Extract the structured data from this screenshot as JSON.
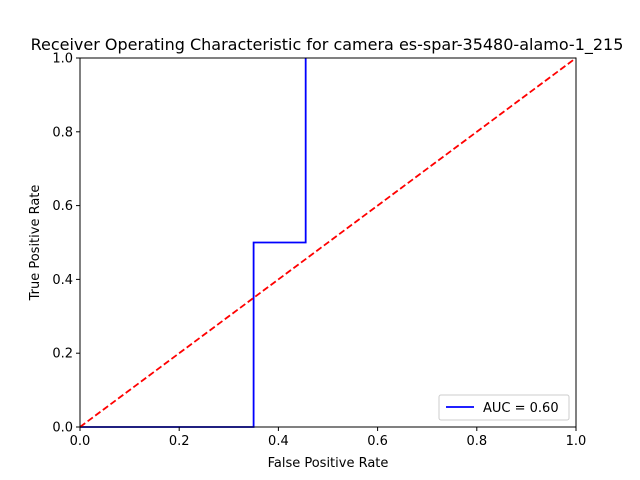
{
  "chart_data": {
    "type": "line",
    "title": "Receiver Operating Characteristic for camera es-spar-35480-alamo-1_215",
    "xlabel": "False Positive Rate",
    "ylabel": "True Positive Rate",
    "xlim": [
      0,
      1
    ],
    "ylim": [
      0,
      1
    ],
    "xticks": [
      "0.0",
      "0.2",
      "0.4",
      "0.6",
      "0.8",
      "1.0"
    ],
    "yticks": [
      "0.0",
      "0.2",
      "0.4",
      "0.6",
      "0.8",
      "1.0"
    ],
    "grid": false,
    "legend_position": "lower right",
    "series": [
      {
        "name": "AUC = 0.60",
        "color": "#0000ff",
        "style": "solid",
        "x": [
          0,
          0.35,
          0.35,
          0.455,
          0.455
        ],
        "y": [
          0,
          0,
          0.5,
          0.5,
          1.0
        ]
      },
      {
        "color": "#ff0000",
        "style": "dashed",
        "x": [
          0,
          1
        ],
        "y": [
          0,
          1
        ]
      }
    ]
  }
}
